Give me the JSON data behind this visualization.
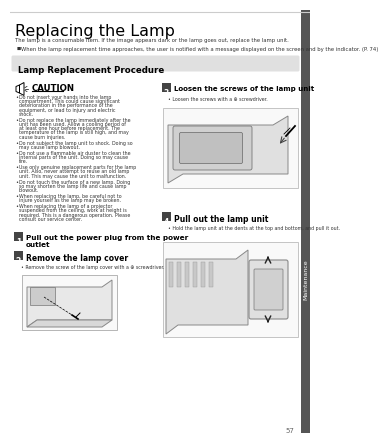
{
  "title": "Replacing the Lamp",
  "bg_color": "#ffffff",
  "top_line_color": "#cccccc",
  "intro_text": "The lamp is a consumable item. If the image appears dark or the lamp goes out, replace the lamp unit.",
  "bullet_intro": "When the lamp replacement time approaches, the user is notified with a message displayed on the screen and by the indicator. (P. 74)",
  "section_header": "Lamp Replacement Procedure",
  "section_header_bg": "#e0e0e0",
  "caution_header": "CAUTION",
  "caution_bullets": [
    "Do not insert your hands into the lamp compartment. This could cause significant deterioration in the performance of the equipment, or lead to injury and electric shock.",
    "Do not replace the lamp immediately after the unit has been used. Allow a cooling period of at least one hour before replacement. The temperature of the lamp is still high, and may cause burn injuries.",
    "Do not subject the lamp unit to shock. Doing so may cause lamp blowout.",
    "Do not use a flammable air duster to clean the internal parts of the unit. Doing so may cause fire.",
    "Use only genuine replacement parts for the lamp unit. Also, never attempt to reuse an old lamp unit. This may cause the unit to malfunction.",
    "Do not touch the surface of a new lamp. Doing so may shorten the lamp life and cause lamp blowout.",
    "When replacing the lamp, be careful not to injure yourself as the lamp may be broken.",
    "When replacing the lamp of a projector suspended from the ceiling, work at height is required. This is a dangerous operation. Please consult our service center."
  ],
  "step1_header": "Pull out the power plug from the power\noutlet",
  "step2_header": "Remove the lamp cover",
  "step2_bullet": "Remove the screw of the lamp cover with a ⊕ screwdriver.",
  "step3_header": "Loosen the screws of the lamp unit",
  "step3_bullet": "Loosen the screws with a ⊕ screwdriver.",
  "step4_header": "Pull out the lamp unit",
  "step4_bullet": "Hold the lamp unit at the dents at the top and bottom, and pull it out.",
  "page_number": "57",
  "sidebar_text": "Maintenance",
  "step_box_color": "#444444",
  "step_box_text_color": "#ffffff",
  "title_color": "#000000",
  "text_color": "#333333",
  "small_text_color": "#666666"
}
